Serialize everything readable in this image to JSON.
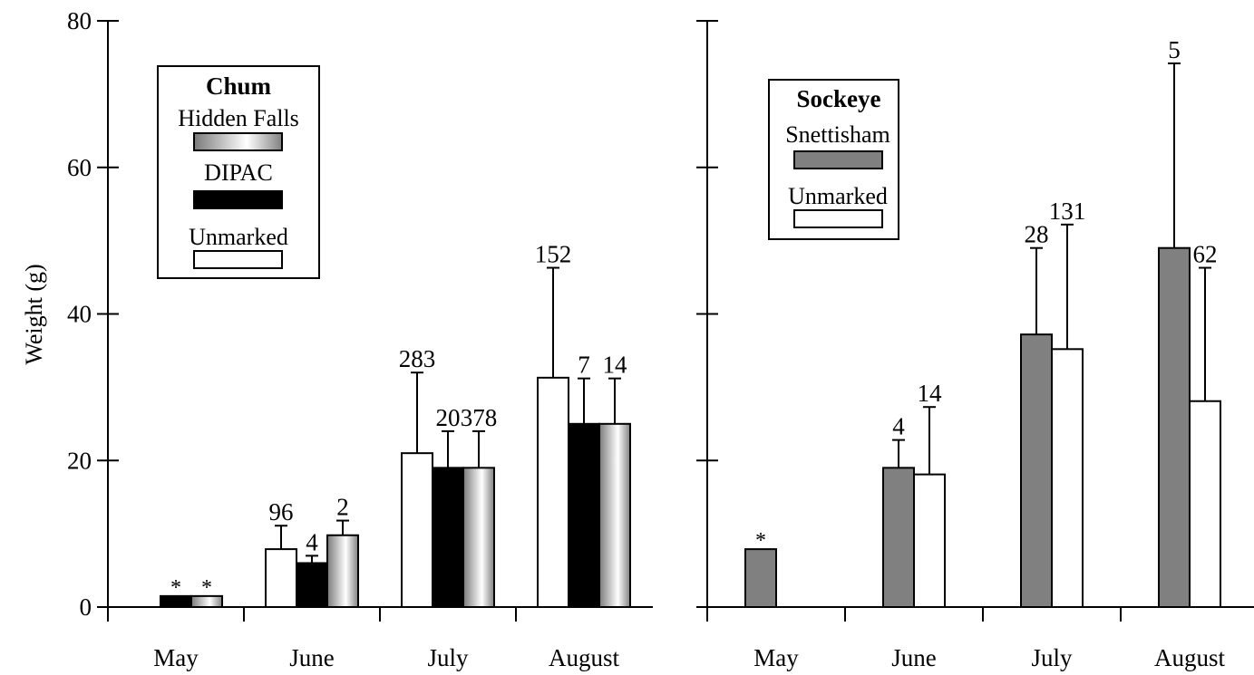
{
  "chart_data": [
    {
      "type": "bar",
      "ylabel": "Weight (g)",
      "ylim": [
        0,
        80
      ],
      "yticks": [
        "0",
        "20",
        "40",
        "60",
        "80"
      ],
      "categories": [
        "May",
        "June",
        "July",
        "August"
      ],
      "legend": {
        "title": "Chum",
        "placement": "top-left"
      },
      "series": [
        {
          "name": "Unmarked",
          "fill": "white",
          "values": [
            null,
            7.9,
            21.0,
            31.3
          ],
          "err": [
            null,
            3.2,
            11.0,
            15.0
          ],
          "labels": [
            "",
            "96",
            "283",
            "152"
          ]
        },
        {
          "name": "DIPAC",
          "fill": "black",
          "values": [
            1.5,
            6.0,
            19.0,
            25.0
          ],
          "err": [
            null,
            1.0,
            5.0,
            6.2
          ],
          "labels": [
            "*",
            "4",
            "20",
            "7"
          ]
        },
        {
          "name": "Hidden Falls",
          "fill": "gradient",
          "values": [
            1.5,
            9.8,
            19.0,
            25.0
          ],
          "err": [
            null,
            2.0,
            5.0,
            6.2
          ],
          "labels": [
            "*",
            "2",
            "378",
            "14"
          ]
        }
      ]
    },
    {
      "type": "bar",
      "ylim": [
        0,
        80
      ],
      "categories": [
        "May",
        "June",
        "July",
        "August"
      ],
      "legend": {
        "title": "Sockeye",
        "placement": "top-left"
      },
      "series": [
        {
          "name": "Snettisham",
          "fill": "gray",
          "values": [
            7.9,
            19.0,
            37.2,
            49.0
          ],
          "err": [
            null,
            3.8,
            11.8,
            25.2
          ],
          "labels": [
            "*",
            "4",
            "28",
            "5"
          ]
        },
        {
          "name": "Unmarked",
          "fill": "white",
          "values": [
            null,
            18.1,
            35.2,
            28.1
          ],
          "err": [
            null,
            9.2,
            17.0,
            18.2
          ],
          "labels": [
            "",
            "14",
            "131",
            "62"
          ]
        }
      ]
    }
  ],
  "colors": {
    "gray": "#808080",
    "black": "#000000",
    "white": "#ffffff"
  }
}
